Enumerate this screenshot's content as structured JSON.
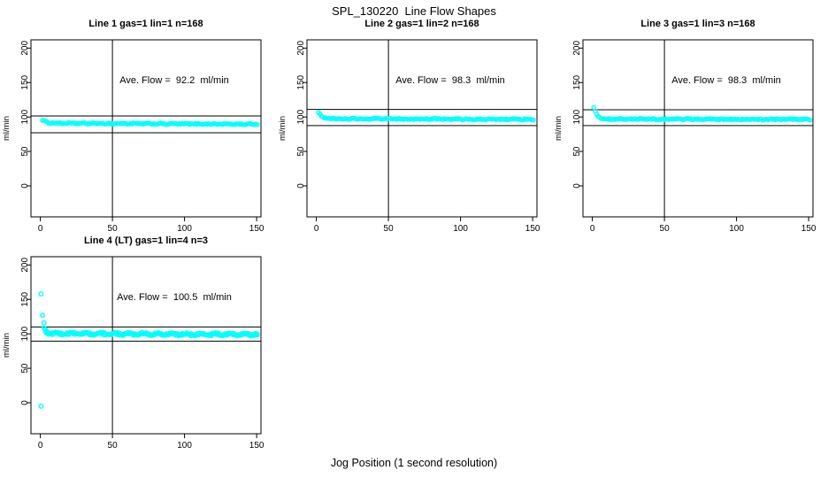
{
  "figure": {
    "title": "SPL_130220  Line Flow Shapes",
    "xlabel": "Jog Position (1 second resolution)",
    "background_color": "#ffffff",
    "point_color": "#00ffff",
    "axis_color": "#000000",
    "text_color": "#000000"
  },
  "chart_data": [
    {
      "type": "scatter",
      "title": "Line 1 gas=1 lin=1 n=168",
      "annotation": "Ave. Flow =  92.2  ml/min",
      "ave_flow_ml_min": 92.2,
      "ylabel": "ml/min",
      "xticks": [
        0,
        50,
        100,
        150
      ],
      "yticks": [
        0,
        50,
        100,
        150,
        200
      ],
      "xlim": [
        -6.5,
        153
      ],
      "ylim": [
        -45,
        212
      ],
      "vline_x": 50,
      "ref_lines": [
        101.5,
        77
      ],
      "band": {
        "x_start": 1.5,
        "x_end": 151,
        "step": 1,
        "start_value": 95.5,
        "settle_value": 91,
        "decay": 3,
        "drift": -1.5,
        "noise": 0.85,
        "wave_amp": 0.3,
        "wave_period": 9,
        "passes": 1
      },
      "outliers": []
    },
    {
      "type": "scatter",
      "title": "Line 2 gas=1 lin=2 n=168",
      "annotation": "Ave. Flow =  98.3  ml/min",
      "ave_flow_ml_min": 98.3,
      "ylabel": "ml/min",
      "xticks": [
        0,
        50,
        100,
        150
      ],
      "yticks": [
        0,
        50,
        100,
        150,
        200
      ],
      "xlim": [
        -6.5,
        153
      ],
      "ylim": [
        -45,
        212
      ],
      "vline_x": 50,
      "ref_lines": [
        111,
        87.5
      ],
      "band": {
        "x_start": 1.5,
        "x_end": 151,
        "step": 1,
        "start_value": 107,
        "settle_value": 97.5,
        "decay": 2.5,
        "drift": -1,
        "noise": 0.85,
        "wave_amp": 0.35,
        "wave_period": 8,
        "passes": 1
      },
      "outliers": []
    },
    {
      "type": "scatter",
      "title": "Line 3 gas=1 lin=3 n=168",
      "annotation": "Ave. Flow =  98.3  ml/min",
      "ave_flow_ml_min": 98.3,
      "ylabel": "ml/min",
      "xticks": [
        0,
        50,
        100,
        150
      ],
      "yticks": [
        0,
        50,
        100,
        150,
        200
      ],
      "xlim": [
        -6.5,
        153
      ],
      "ylim": [
        -45,
        212
      ],
      "vline_x": 50,
      "ref_lines": [
        110.5,
        87.5
      ],
      "band": {
        "x_start": 1,
        "x_end": 151,
        "step": 1,
        "start_value": 114,
        "settle_value": 97,
        "decay": 2.2,
        "drift": -0.5,
        "noise": 0.85,
        "wave_amp": 0.3,
        "wave_period": 8,
        "passes": 1
      },
      "outliers": []
    },
    {
      "type": "scatter",
      "title": "Line 4 (LT) gas=1 lin=4 n=3",
      "annotation": "Ave. Flow =  100.5  ml/min",
      "ave_flow_ml_min": 100.5,
      "ylabel": "ml/min",
      "xticks": [
        0,
        50,
        100,
        150
      ],
      "yticks": [
        0,
        50,
        100,
        150,
        200
      ],
      "xlim": [
        -6.5,
        153
      ],
      "ylim": [
        -45,
        212
      ],
      "vline_x": 50,
      "ref_lines": [
        110,
        89.5
      ],
      "band": {
        "x_start": 2.5,
        "x_end": 151,
        "step": 1,
        "start_value": 107,
        "settle_value": 100.5,
        "decay": 2,
        "drift": -1.5,
        "noise": 1.1,
        "wave_amp": 1.5,
        "wave_period": 10,
        "passes": 2
      },
      "outliers": [
        [
          0.5,
          158
        ],
        [
          1.5,
          127
        ],
        [
          2.5,
          116
        ],
        [
          0.5,
          -5
        ]
      ]
    }
  ]
}
